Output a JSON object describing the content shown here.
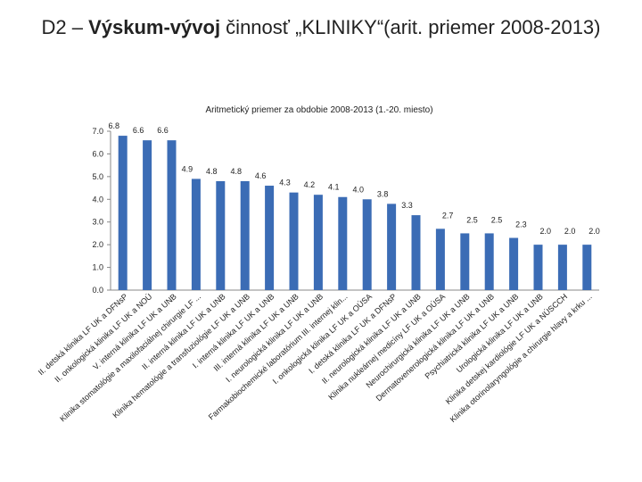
{
  "title": [
    "D2 – ",
    "Výskum-vývoj",
    " činnosť „KLINIKY“(arit. priemer 2008-2013)"
  ],
  "chart_data": {
    "type": "bar",
    "title": "Aritmetický priemer za obdobie 2008-2013 (1.-20. miesto)",
    "categories": [
      "II. detská klinika LF UK a DFNsP",
      "II. onkologická klinika LF UK a NOÚ",
      "V. interná klinika LF UK a UNB",
      "Klinika stomatológie a maxilofaciálnej chirurgie LF ...",
      "II. interná klinika LF UK a UNB",
      "Klinika hematológie a transfuziológie LF UK a UNB",
      "I. interná klinika LF UK a UNB",
      "III. interná klinika LF UK a UNB",
      "I. neurologická klinika LF UK a UNB",
      "Farmakobiochemické laboratórium III. internej klin...",
      "I. onkologická klinika LF UK a OÚSA",
      "I. detská klinika LF UK a DFNsP",
      "II. neurologická klinika LF UK a UNB",
      "Klinika nukleárnej medicíny LF UK a OÚSA",
      "Neurochirurgická klinika LF UK a UNB",
      "Dermatovenerologická klinika LF UK a UNB",
      "Psychiatrická klinika LF UK a UNB",
      "Urologická klinika LF UK a UNB",
      "Klinika detskej kardiológie LF UK a NÚSCCH",
      "Klinika otorinolaryngológie a chirurgie hlavy a krku ..."
    ],
    "values": [
      6.8,
      6.6,
      6.6,
      4.9,
      4.8,
      4.8,
      4.6,
      4.3,
      4.2,
      4.1,
      4.0,
      3.8,
      3.3,
      2.7,
      2.5,
      2.5,
      2.3,
      2.0,
      2.0,
      2.0
    ],
    "value_labels": [
      "6.8",
      "6.6",
      "6.6",
      "4.9",
      "4.8",
      "4.8",
      "4.6",
      "4.3",
      "4.2",
      "4.1",
      "4.0",
      "3.8",
      "3.3",
      "2.7",
      "2.5",
      "2.5",
      "2.3",
      "2.0",
      "2.0",
      "2.0"
    ],
    "color": "#3b6cb5",
    "ylim": [
      0,
      7
    ],
    "yticks": [
      {
        "value": 0,
        "label": "0.0"
      },
      {
        "value": 1,
        "label": "1.0"
      },
      {
        "value": 2,
        "label": "2.0"
      },
      {
        "value": 3,
        "label": "3.0"
      },
      {
        "value": 4,
        "label": "4.0"
      },
      {
        "value": 5,
        "label": "5.0"
      },
      {
        "value": 6,
        "label": "6.0"
      },
      {
        "value": 7,
        "label": "7.0"
      }
    ],
    "grid": false
  }
}
